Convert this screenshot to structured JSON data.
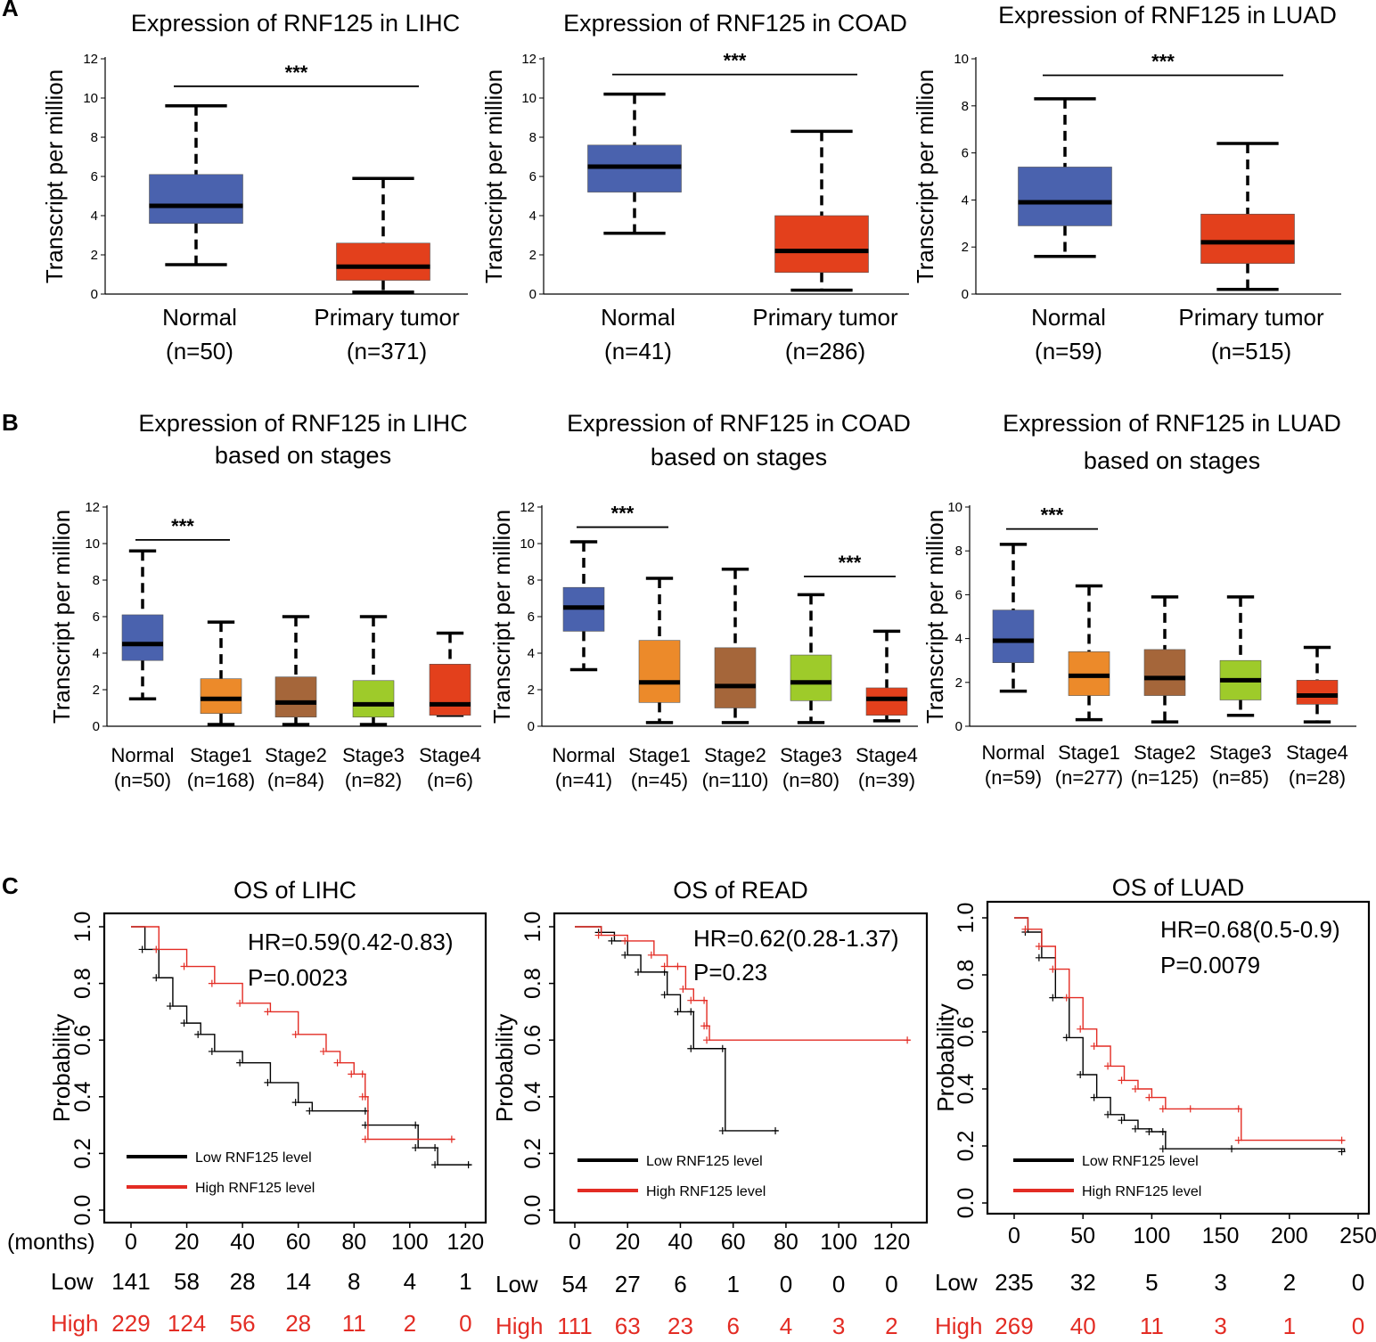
{
  "panels": {
    "A": "A",
    "B": "B",
    "C": "C"
  },
  "colors": {
    "normal": "#4a62ae",
    "tumor": "#e3401c",
    "stage1": "#ec8a2a",
    "stage2": "#a5663a",
    "stage3": "#9ecb2a",
    "stage4": "#e3401c",
    "km_low": "#000000",
    "km_high": "#e32c24"
  },
  "chart_data": [
    {
      "id": "A-LIHC",
      "type": "box",
      "title": "Expression of RNF125 in LIHC",
      "ylabel": "Transcript per million",
      "ylim": [
        0,
        12
      ],
      "yticks": [
        0,
        2,
        4,
        6,
        8,
        10,
        12
      ],
      "boxes": [
        {
          "name": "Normal",
          "n": "(n=50)",
          "color": "normal",
          "min": 1.5,
          "q1": 3.6,
          "median": 4.5,
          "q3": 6.1,
          "max": 9.6
        },
        {
          "name": "Primary tumor",
          "n": "(n=371)",
          "color": "tumor",
          "min": 0.1,
          "q1": 0.7,
          "median": 1.4,
          "q3": 2.6,
          "max": 5.9
        }
      ],
      "sig": [
        {
          "from": 0,
          "to": 1,
          "y": 10.6,
          "label": "***"
        }
      ]
    },
    {
      "id": "A-COAD",
      "type": "box",
      "title": "Expression of RNF125 in COAD",
      "ylabel": "Transcript per million",
      "ylim": [
        0,
        12
      ],
      "yticks": [
        0,
        2,
        4,
        6,
        8,
        10,
        12
      ],
      "boxes": [
        {
          "name": "Normal",
          "n": "(n=41)",
          "color": "normal",
          "min": 3.1,
          "q1": 5.2,
          "median": 6.5,
          "q3": 7.6,
          "max": 10.2
        },
        {
          "name": "Primary tumor",
          "n": "(n=286)",
          "color": "tumor",
          "min": 0.2,
          "q1": 1.1,
          "median": 2.2,
          "q3": 4.0,
          "max": 8.3
        }
      ],
      "sig": [
        {
          "from": 0,
          "to": 1,
          "y": 11.2,
          "label": "***"
        }
      ]
    },
    {
      "id": "A-LUAD",
      "type": "box",
      "title": "Expression of RNF125 in LUAD",
      "ylabel": "Transcript per million",
      "ylim": [
        0,
        10
      ],
      "yticks": [
        0,
        2,
        4,
        6,
        8,
        10
      ],
      "boxes": [
        {
          "name": "Normal",
          "n": "(n=59)",
          "color": "normal",
          "min": 1.6,
          "q1": 2.9,
          "median": 3.9,
          "q3": 5.4,
          "max": 8.3
        },
        {
          "name": "Primary tumor",
          "n": "(n=515)",
          "color": "tumor",
          "min": 0.2,
          "q1": 1.3,
          "median": 2.2,
          "q3": 3.4,
          "max": 6.4
        }
      ],
      "sig": [
        {
          "from": 0,
          "to": 1,
          "y": 9.3,
          "label": "***"
        }
      ]
    },
    {
      "id": "B-LIHC",
      "type": "box",
      "title": [
        "Expression of RNF125 in LIHC",
        "based on stages"
      ],
      "ylabel": "Transcript per million",
      "ylim": [
        0,
        12
      ],
      "yticks": [
        0,
        2,
        4,
        6,
        8,
        10,
        12
      ],
      "boxes": [
        {
          "name": "Normal",
          "n": "(n=50)",
          "color": "normal",
          "min": 1.5,
          "q1": 3.6,
          "median": 4.5,
          "q3": 6.1,
          "max": 9.6
        },
        {
          "name": "Stage1",
          "n": "(n=168)",
          "color": "stage1",
          "min": 0.1,
          "q1": 0.7,
          "median": 1.5,
          "q3": 2.6,
          "max": 5.7
        },
        {
          "name": "Stage2",
          "n": "(n=84)",
          "color": "stage2",
          "min": 0.1,
          "q1": 0.5,
          "median": 1.3,
          "q3": 2.7,
          "max": 6.0
        },
        {
          "name": "Stage3",
          "n": "(n=82)",
          "color": "stage3",
          "min": 0.1,
          "q1": 0.5,
          "median": 1.2,
          "q3": 2.5,
          "max": 6.0
        },
        {
          "name": "Stage4",
          "n": "(n=6)",
          "color": "stage4",
          "min": 0.6,
          "q1": 0.6,
          "median": 1.2,
          "q3": 3.4,
          "max": 5.1
        }
      ],
      "sig": [
        {
          "from": 0,
          "to": 1,
          "y": 10.2,
          "label": "***"
        }
      ]
    },
    {
      "id": "B-COAD",
      "type": "box",
      "title": [
        "Expression of RNF125 in COAD",
        "based on stages"
      ],
      "ylabel": "Transcript per million",
      "ylim": [
        0,
        12
      ],
      "yticks": [
        0,
        2,
        4,
        6,
        8,
        10,
        12
      ],
      "boxes": [
        {
          "name": "Normal",
          "n": "(n=41)",
          "color": "normal",
          "min": 3.1,
          "q1": 5.2,
          "median": 6.5,
          "q3": 7.6,
          "max": 10.1
        },
        {
          "name": "Stage1",
          "n": "(n=45)",
          "color": "stage1",
          "min": 0.2,
          "q1": 1.3,
          "median": 2.4,
          "q3": 4.7,
          "max": 8.1
        },
        {
          "name": "Stage2",
          "n": "(n=110)",
          "color": "stage2",
          "min": 0.2,
          "q1": 1.0,
          "median": 2.2,
          "q3": 4.3,
          "max": 8.6
        },
        {
          "name": "Stage3",
          "n": "(n=80)",
          "color": "stage3",
          "min": 0.2,
          "q1": 1.4,
          "median": 2.4,
          "q3": 3.9,
          "max": 7.2
        },
        {
          "name": "Stage4",
          "n": "(n=39)",
          "color": "stage4",
          "min": 0.3,
          "q1": 0.6,
          "median": 1.5,
          "q3": 2.1,
          "max": 5.2
        }
      ],
      "sig": [
        {
          "from": 0,
          "to": 1,
          "y": 10.9,
          "label": "***"
        },
        {
          "from": 3,
          "to": 4,
          "y": 8.2,
          "label": "***"
        }
      ]
    },
    {
      "id": "B-LUAD",
      "type": "box",
      "title": [
        "Expression of RNF125 in LUAD",
        "based on stages"
      ],
      "ylabel": "Transcript per million",
      "ylim": [
        0,
        10
      ],
      "yticks": [
        0,
        2,
        4,
        6,
        8,
        10
      ],
      "boxes": [
        {
          "name": "Normal",
          "n": "(n=59)",
          "color": "normal",
          "min": 1.6,
          "q1": 2.9,
          "median": 3.9,
          "q3": 5.3,
          "max": 8.3
        },
        {
          "name": "Stage1",
          "n": "(n=277)",
          "color": "stage1",
          "min": 0.3,
          "q1": 1.4,
          "median": 2.3,
          "q3": 3.4,
          "max": 6.4
        },
        {
          "name": "Stage2",
          "n": "(n=125)",
          "color": "stage2",
          "min": 0.2,
          "q1": 1.4,
          "median": 2.2,
          "q3": 3.5,
          "max": 5.9
        },
        {
          "name": "Stage3",
          "n": "(n=85)",
          "color": "stage3",
          "min": 0.5,
          "q1": 1.2,
          "median": 2.1,
          "q3": 3.0,
          "max": 5.9
        },
        {
          "name": "Stage4",
          "n": "(n=28)",
          "color": "stage4",
          "min": 0.2,
          "q1": 1.0,
          "median": 1.4,
          "q3": 2.1,
          "max": 3.6
        }
      ],
      "sig": [
        {
          "from": 0,
          "to": 1,
          "y": 9.0,
          "label": "***"
        }
      ]
    },
    {
      "id": "C-LIHC",
      "type": "km",
      "title": "OS of LIHC",
      "ylabel": "Probability",
      "xlim": [
        0,
        125
      ],
      "xticks": [
        0,
        20,
        40,
        60,
        80,
        100,
        120
      ],
      "ylim": [
        0,
        1
      ],
      "yticks": [
        "0.0",
        "0.2",
        "0.4",
        "0.6",
        "0.8",
        "1.0"
      ],
      "xtitle": "(months)",
      "hr": "HR=0.59(0.42-0.83)",
      "p": "P=0.0023",
      "legend": [
        "Low RNF125 level",
        "High RNF125 level"
      ],
      "low": [
        [
          0,
          1.0
        ],
        [
          5,
          0.92
        ],
        [
          10,
          0.82
        ],
        [
          15,
          0.72
        ],
        [
          20,
          0.66
        ],
        [
          25,
          0.62
        ],
        [
          30,
          0.56
        ],
        [
          40,
          0.52
        ],
        [
          50,
          0.45
        ],
        [
          60,
          0.38
        ],
        [
          65,
          0.35
        ],
        [
          85,
          0.35
        ],
        [
          85,
          0.3
        ],
        [
          103,
          0.3
        ],
        [
          103,
          0.22
        ],
        [
          110,
          0.22
        ],
        [
          110,
          0.16
        ],
        [
          122,
          0.16
        ]
      ],
      "high": [
        [
          0,
          1.0
        ],
        [
          10,
          0.92
        ],
        [
          20,
          0.86
        ],
        [
          30,
          0.8
        ],
        [
          40,
          0.73
        ],
        [
          50,
          0.7
        ],
        [
          60,
          0.62
        ],
        [
          70,
          0.56
        ],
        [
          75,
          0.52
        ],
        [
          80,
          0.48
        ],
        [
          84,
          0.48
        ],
        [
          84,
          0.4
        ],
        [
          85,
          0.4
        ],
        [
          85,
          0.25
        ],
        [
          116,
          0.25
        ]
      ],
      "risk": {
        "low_label": "Low",
        "high_label": "High",
        "low": [
          "141",
          "58",
          "28",
          "14",
          "8",
          "4",
          "1"
        ],
        "high": [
          "229",
          "124",
          "56",
          "28",
          "11",
          "2",
          "0"
        ]
      }
    },
    {
      "id": "C-READ",
      "type": "km",
      "title": "OS of READ",
      "ylabel": "Probability",
      "xlim": [
        0,
        130
      ],
      "xticks": [
        0,
        20,
        40,
        60,
        80,
        100,
        120
      ],
      "ylim": [
        0,
        1
      ],
      "yticks": [
        "0.0",
        "0.2",
        "0.4",
        "0.6",
        "0.8",
        "1.0"
      ],
      "hr": "HR=0.62(0.28-1.37)",
      "p": "P=0.23",
      "legend": [
        "Low RNF125 level",
        "High RNF125 level"
      ],
      "low": [
        [
          0,
          1.0
        ],
        [
          10,
          0.98
        ],
        [
          15,
          0.95
        ],
        [
          20,
          0.9
        ],
        [
          25,
          0.84
        ],
        [
          35,
          0.84
        ],
        [
          35,
          0.76
        ],
        [
          40,
          0.7
        ],
        [
          45,
          0.7
        ],
        [
          45,
          0.57
        ],
        [
          57,
          0.57
        ],
        [
          57,
          0.28
        ],
        [
          77,
          0.28
        ]
      ],
      "high": [
        [
          0,
          1.0
        ],
        [
          10,
          0.97
        ],
        [
          20,
          0.95
        ],
        [
          30,
          0.9
        ],
        [
          35,
          0.86
        ],
        [
          40,
          0.86
        ],
        [
          42,
          0.78
        ],
        [
          45,
          0.74
        ],
        [
          50,
          0.74
        ],
        [
          50,
          0.65
        ],
        [
          51,
          0.65
        ],
        [
          51,
          0.6
        ],
        [
          127,
          0.6
        ]
      ],
      "risk": {
        "low_label": "Low",
        "high_label": "High",
        "low": [
          "54",
          "27",
          "6",
          "1",
          "0",
          "0",
          "0"
        ],
        "high": [
          "111",
          "63",
          "23",
          "6",
          "4",
          "3",
          "2"
        ]
      }
    },
    {
      "id": "C-LUAD",
      "type": "km",
      "title": "OS of LUAD",
      "ylabel": "Probability",
      "xlim": [
        0,
        250
      ],
      "xticks": [
        0,
        50,
        100,
        150,
        200,
        250
      ],
      "ylim": [
        0,
        1
      ],
      "yticks": [
        "0.0",
        "0.2",
        "0.4",
        "0.6",
        "0.8",
        "1.0"
      ],
      "hr": "HR=0.68(0.5-0.9)",
      "p": "P=0.0079",
      "legend": [
        "Low RNF125 level",
        "High RNF125 level"
      ],
      "low": [
        [
          0,
          1.0
        ],
        [
          10,
          0.95
        ],
        [
          20,
          0.86
        ],
        [
          30,
          0.72
        ],
        [
          40,
          0.58
        ],
        [
          50,
          0.45
        ],
        [
          60,
          0.37
        ],
        [
          70,
          0.31
        ],
        [
          80,
          0.29
        ],
        [
          90,
          0.26
        ],
        [
          100,
          0.25
        ],
        [
          110,
          0.25
        ],
        [
          110,
          0.19
        ],
        [
          160,
          0.19
        ],
        [
          240,
          0.18
        ]
      ],
      "high": [
        [
          0,
          1.0
        ],
        [
          10,
          0.96
        ],
        [
          20,
          0.9
        ],
        [
          30,
          0.82
        ],
        [
          40,
          0.72
        ],
        [
          50,
          0.61
        ],
        [
          60,
          0.55
        ],
        [
          70,
          0.48
        ],
        [
          80,
          0.43
        ],
        [
          90,
          0.4
        ],
        [
          100,
          0.37
        ],
        [
          110,
          0.33
        ],
        [
          130,
          0.33
        ],
        [
          165,
          0.33
        ],
        [
          165,
          0.22
        ],
        [
          240,
          0.22
        ]
      ],
      "risk": {
        "low_label": "Low",
        "high_label": "High",
        "low": [
          "235",
          "32",
          "5",
          "3",
          "2",
          "0"
        ],
        "high": [
          "269",
          "40",
          "11",
          "3",
          "1",
          "0"
        ]
      }
    }
  ]
}
